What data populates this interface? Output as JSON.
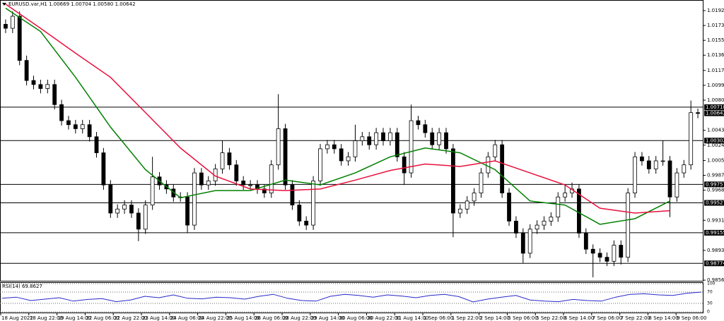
{
  "chart_data": [
    {
      "type": "candlestick",
      "title": "EURUSD.var,H1 1.00669 1.00704 1.00580 1.00642",
      "open": [
        1.0175,
        1.017,
        1.0185,
        1.013,
        1.0105,
        1.01,
        1.0095,
        1.01,
        1.0075,
        1.0055,
        1.005,
        1.0045,
        1.005,
        1.0035,
        1.0015,
        0.9975,
        0.994,
        0.9945,
        0.995,
        0.994,
        0.992,
        0.995,
        0.9985,
        0.9975,
        0.997,
        0.996,
        0.996,
        0.9925,
        0.999,
        0.9975,
        0.998,
        0.9995,
        1.0015,
        1.0,
        0.998,
        0.9975,
        0.9975,
        0.997,
        0.9965,
        1.0,
        1.0045,
        0.9975,
        0.995,
        0.993,
        0.9925,
        0.998,
        1.002,
        1.0025,
        1.002,
        1.0005,
        1.001,
        1.003,
        1.0035,
        1.0025,
        1.004,
        1.003,
        1.004,
        1.001,
        0.999,
        1.0055,
        1.005,
        1.004,
        1.0025,
        1.004,
        1.002,
        0.994,
        0.9945,
        0.9955,
        0.9965,
        0.999,
        1.001,
        1.0025,
        0.9965,
        0.993,
        0.9915,
        0.989,
        0.992,
        0.9925,
        0.993,
        0.9935,
        0.996,
        0.9965,
        0.997,
        0.9915,
        0.9895,
        0.989,
        0.9885,
        0.988,
        0.99,
        0.9885,
        0.9965,
        1.001,
        1.0005,
        0.9995,
        1.0005,
        1.0005,
        0.996,
        0.999,
        1.0,
        1.0065
      ],
      "high": [
        1.0181,
        1.0191,
        1.0191,
        1.0136,
        1.0111,
        1.0106,
        1.0106,
        1.0106,
        1.0081,
        1.0061,
        1.0056,
        1.0056,
        1.0056,
        1.0041,
        1.0021,
        0.9981,
        0.9951,
        0.9956,
        0.9956,
        0.9946,
        0.9956,
        1.001,
        0.9991,
        0.9981,
        0.9976,
        0.9966,
        0.9966,
        0.9996,
        0.9996,
        0.9986,
        1.0001,
        1.003,
        1.0021,
        1.0006,
        0.9986,
        0.9981,
        0.9981,
        0.9976,
        1.0006,
        1.0088,
        1.0051,
        0.9981,
        0.9956,
        0.9936,
        0.9986,
        1.0026,
        1.0031,
        1.0031,
        1.0026,
        1.0016,
        1.005,
        1.0041,
        1.0041,
        1.0046,
        1.0046,
        1.0046,
        1.0046,
        1.0016,
        1.0075,
        1.0061,
        1.0056,
        1.0046,
        1.0046,
        1.0046,
        1.0026,
        0.9951,
        0.9961,
        0.9971,
        0.9996,
        1.0016,
        1.0031,
        1.0031,
        0.9971,
        0.9936,
        0.9921,
        0.9926,
        0.9931,
        0.9936,
        0.9941,
        0.9966,
        0.9975,
        0.9978,
        0.9976,
        0.9921,
        0.9901,
        0.9896,
        0.9891,
        0.9906,
        0.9906,
        0.9971,
        1.0016,
        1.0016,
        1.0011,
        1.0011,
        1.003,
        1.0011,
        0.9996,
        1.0006,
        1.008,
        1.007
      ],
      "low": [
        1.0164,
        1.0164,
        1.0124,
        1.0099,
        1.0094,
        1.0089,
        1.0089,
        1.0069,
        1.0049,
        1.0044,
        1.0039,
        1.0039,
        1.0029,
        1.0009,
        0.9969,
        0.9934,
        0.9934,
        0.9939,
        0.9934,
        0.9905,
        0.9914,
        0.9944,
        0.9969,
        0.9964,
        0.9954,
        0.9954,
        0.9915,
        0.9919,
        0.9969,
        0.9969,
        0.9974,
        0.9989,
        0.9994,
        0.9974,
        0.9969,
        0.9969,
        0.9964,
        0.9959,
        0.9959,
        0.9994,
        0.9969,
        0.9944,
        0.9924,
        0.9919,
        0.9919,
        0.9974,
        1.0014,
        1.0014,
        0.9999,
        0.9999,
        1.0004,
        1.0024,
        1.0019,
        1.0019,
        1.0024,
        1.0024,
        1.0004,
        0.9975,
        0.9984,
        1.0044,
        1.0034,
        1.0019,
        1.0019,
        1.0014,
        0.991,
        0.9934,
        0.9939,
        0.9949,
        0.9959,
        0.9984,
        1.0004,
        0.9959,
        0.9924,
        0.9909,
        0.9878,
        0.9884,
        0.9914,
        0.9919,
        0.9924,
        0.9929,
        0.9954,
        0.9959,
        0.9909,
        0.9889,
        0.986,
        0.9879,
        0.9874,
        0.9874,
        0.9876,
        0.9879,
        0.9959,
        0.9999,
        0.9989,
        0.9989,
        0.9999,
        0.9935,
        0.9954,
        0.9984,
        0.9994,
        1.0058
      ],
      "close": [
        1.017,
        1.0185,
        1.013,
        1.0105,
        1.01,
        1.0095,
        1.01,
        1.0075,
        1.0055,
        1.005,
        1.0045,
        1.005,
        1.0035,
        1.0015,
        0.9975,
        0.994,
        0.9945,
        0.995,
        0.994,
        0.992,
        0.995,
        0.9985,
        0.9975,
        0.997,
        0.996,
        0.996,
        0.9925,
        0.999,
        0.9975,
        0.998,
        0.9995,
        1.0015,
        1.0,
        0.998,
        0.9975,
        0.9975,
        0.997,
        0.9965,
        1.0,
        1.0045,
        0.9975,
        0.995,
        0.993,
        0.9925,
        0.998,
        1.002,
        1.0025,
        1.002,
        1.0005,
        1.001,
        1.003,
        1.0035,
        1.0025,
        1.004,
        1.003,
        1.004,
        1.001,
        0.999,
        1.0055,
        1.005,
        1.004,
        1.0025,
        1.004,
        1.002,
        0.994,
        0.9945,
        0.9955,
        0.9965,
        0.999,
        1.001,
        1.0025,
        0.9965,
        0.993,
        0.9915,
        0.989,
        0.992,
        0.9925,
        0.993,
        0.9935,
        0.996,
        0.9965,
        0.997,
        0.9915,
        0.9895,
        0.989,
        0.9885,
        0.988,
        0.99,
        0.9885,
        0.9965,
        1.001,
        1.0005,
        0.9995,
        1.0005,
        1.0005,
        0.996,
        0.999,
        1.0,
        1.0065,
        1.0064
      ],
      "series": [
        {
          "color": "#008000",
          "values": [
            1.0195,
            1.0166,
            1.0109,
            1.0047,
            0.9994,
            0.9959,
            0.9968,
            0.9968,
            0.9981,
            0.9975,
            0.999,
            1.001,
            1.0021,
            1.0015,
            0.9994,
            0.9955,
            0.995,
            0.9926,
            0.9933,
            0.9955
          ]
        },
        {
          "color": "#e8103c",
          "values": [
            1.02,
            1.017,
            1.0139,
            1.0109,
            1.0065,
            1.0021,
            0.9986,
            0.997,
            0.9968,
            0.997,
            0.9981,
            0.9993,
            1.0001,
            0.9998,
            1.0005,
            0.999,
            0.9975,
            0.9946,
            0.994,
            0.9943
          ]
        }
      ],
      "ylim": [
        0.98557,
        1.02052
      ],
      "yticks": [
        {
          "value": 1.0192,
          "label": "1.01920"
        },
        1.01735,
        {
          "value": 1.0155,
          "label": "1.01550"
        },
        1.01365,
        1.01175,
        {
          "value": 1.0099,
          "label": "1.00990"
        },
        1.00805,
        {
          "value": 1.0043,
          "label": "1.00430"
        },
        1.00245,
        1.00055,
        {
          "value": 0.9987,
          "label": "0.99870"
        },
        0.99685,
        {
          "value": 0.9931,
          "label": "0.99310"
        },
        0.98935,
        0.98565
      ],
      "levels": [
        1.00718,
        1.00302,
        0.99757,
        0.99527,
        0.99155,
        0.98774
      ],
      "last_price": 1.00642,
      "x_labels": [
        "18 Aug 2022",
        "18 Aug 22:00",
        "19 Aug 14:00",
        "22 Aug 06:00",
        "22 Aug 22:00",
        "23 Aug 14:00",
        "24 Aug 06:00",
        "24 Aug 22:00",
        "25 Aug 14:00",
        "26 Aug 06:00",
        "28 Aug 22:00",
        "29 Aug 14:00",
        "30 Aug 06:00",
        "30 Aug 22:00",
        "31 Aug 14:00",
        "1 Sep 06:00",
        "1 Sep 22:00",
        "2 Sep 14:00",
        "5 Sep 06:00",
        "5 Sep 22:00",
        "6 Sep 14:00",
        "7 Sep 06:00",
        "7 Sep 22:00",
        "8 Sep 14:00",
        "9 Sep 06:00"
      ]
    },
    {
      "type": "line",
      "title": "RSI(14) 69.8627",
      "color": "#2828c8",
      "values": [
        48,
        52,
        40,
        45,
        50,
        38,
        44,
        47,
        36,
        42,
        55,
        50,
        60,
        48,
        46,
        52,
        50,
        45,
        55,
        62,
        48,
        40,
        38,
        55,
        62,
        58,
        52,
        60,
        56,
        50,
        58,
        62,
        54,
        35,
        45,
        52,
        58,
        42,
        38,
        36,
        44,
        40,
        38,
        52,
        62,
        64,
        60,
        58,
        66,
        69.8627
      ],
      "ylim": [
        0,
        100
      ],
      "yticks": [
        100,
        70,
        30,
        0
      ]
    }
  ]
}
